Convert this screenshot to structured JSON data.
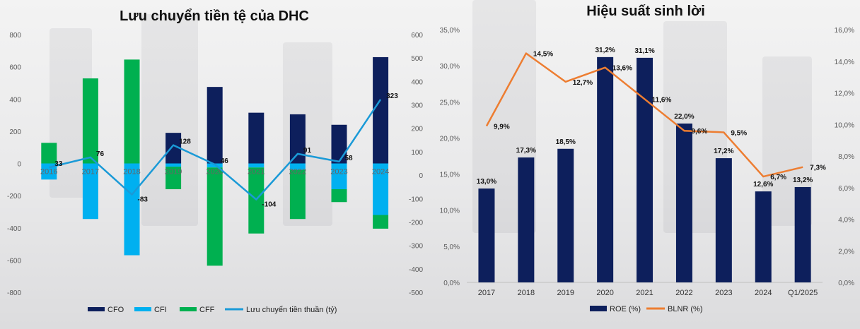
{
  "left": {
    "title": "Lưu chuyển tiền tệ của DHC",
    "left_ticks": [
      "800",
      "600",
      "400",
      "200",
      "0",
      "-200",
      "-400",
      "-600",
      "-800"
    ],
    "right_ticks": [
      "600",
      "500",
      "400",
      "300",
      "200",
      "100",
      "0",
      "-100",
      "-200",
      "-300",
      "-400",
      "-500"
    ],
    "legend": {
      "cfo": "CFO",
      "cfi": "CFI",
      "cff": "CFF",
      "net": "Lưu chuyển tiền thuần (tỷ)"
    }
  },
  "right": {
    "title": "Hiệu suất sinh lời",
    "left_ticks": [
      "35,0%",
      "30,0%",
      "25,0%",
      "20,0%",
      "15,0%",
      "10,0%",
      "5,0%",
      "0,0%"
    ],
    "right_ticks": [
      "16,0%",
      "14,0%",
      "12,0%",
      "10,0%",
      "8,0%",
      "6,0%",
      "4,0%",
      "2,0%",
      "0,0%"
    ],
    "legend": {
      "roe": "ROE (%)",
      "blnr": "BLNR (%)"
    }
  },
  "chart_data": [
    {
      "type": "bar",
      "title": "Lưu chuyển tiền tệ của DHC",
      "categories": [
        "2016",
        "2017",
        "2018",
        "2019",
        "2020",
        "2021",
        "2022",
        "2023",
        "2024"
      ],
      "series": [
        {
          "name": "CFO",
          "kind": "bar",
          "axis": "left",
          "color": "#0d1f5c",
          "values": [
            0,
            0,
            0,
            190,
            475,
            315,
            305,
            240,
            660
          ]
        },
        {
          "name": "CFI",
          "kind": "bar",
          "axis": "left",
          "color": "#00b0f0",
          "values": [
            -100,
            -345,
            -570,
            -20,
            -25,
            -25,
            -40,
            -160,
            -320
          ]
        },
        {
          "name": "CFF",
          "kind": "bar",
          "axis": "left",
          "color": "#00b050",
          "values": [
            128,
            528,
            645,
            -140,
            -610,
            -410,
            -305,
            -80,
            -85
          ]
        },
        {
          "name": "Lưu chuyển tiền thuần (tỷ)",
          "kind": "line",
          "axis": "right",
          "color": "#1a9ad7",
          "values": [
            33,
            76,
            -83,
            128,
            46,
            -104,
            91,
            58,
            323
          ],
          "labels": [
            "33",
            "76",
            "-83",
            "128",
            "46",
            "-104",
            "91",
            "58",
            "323"
          ]
        }
      ],
      "ylim_left": [
        -800,
        800
      ],
      "ylim_right": [
        -500,
        600
      ]
    },
    {
      "type": "bar",
      "title": "Hiệu suất sinh lời",
      "categories": [
        "2017",
        "2018",
        "2019",
        "2020",
        "2021",
        "2022",
        "2023",
        "2024",
        "Q1/2025"
      ],
      "series": [
        {
          "name": "ROE (%)",
          "kind": "bar",
          "axis": "left",
          "color": "#0d1f5c",
          "values": [
            13.0,
            17.3,
            18.5,
            31.2,
            31.1,
            22.0,
            17.2,
            12.6,
            13.2
          ],
          "labels": [
            "13,0%",
            "17,3%",
            "18,5%",
            "31,2%",
            "31,1%",
            "22,0%",
            "17,2%",
            "12,6%",
            "13,2%"
          ]
        },
        {
          "name": "BLNR (%)",
          "kind": "line",
          "axis": "right",
          "color": "#ed7d31",
          "values": [
            9.9,
            14.5,
            12.7,
            13.6,
            11.6,
            9.6,
            9.5,
            6.7,
            7.3
          ],
          "labels": [
            "9,9%",
            "14,5%",
            "12,7%",
            "13,6%",
            "11,6%",
            "9,6%",
            "9,5%",
            "6,7%",
            "7,3%"
          ]
        }
      ],
      "ylim_left": [
        0,
        35
      ],
      "ylim_right": [
        0,
        16
      ]
    }
  ]
}
